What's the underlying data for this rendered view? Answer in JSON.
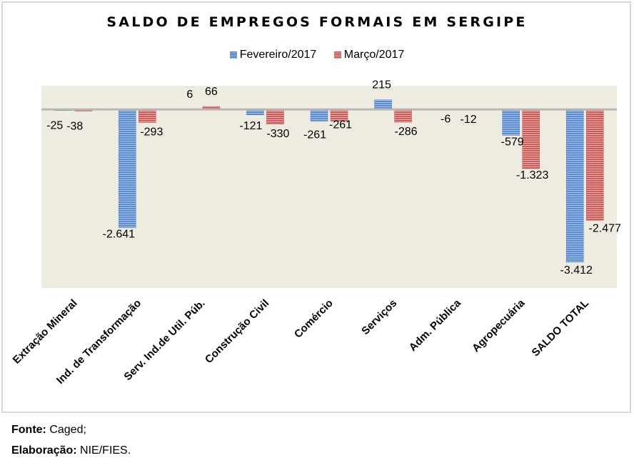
{
  "chart_data": {
    "type": "bar",
    "title": "SALDO DE EMPREGOS FORMAIS EM SERGIPE",
    "xlabel": "",
    "ylabel": "",
    "categories": [
      "Extração Mineral",
      "Ind. de Transformação",
      "Serv. Ind.de Util. Púb.",
      "Construção Civil",
      "Comércio",
      "Serviços",
      "Adm. Pública",
      "Agropecuária",
      "SALDO TOTAL"
    ],
    "series": [
      {
        "name": "Fevereiro/2017",
        "color": "#4f81bd",
        "values": [
          -25,
          -2641,
          6,
          -121,
          -261,
          215,
          -6,
          -579,
          -3412
        ],
        "labels": [
          "-25",
          "-2.641",
          "6",
          "-121",
          "-261",
          "215",
          "-6",
          "-579",
          "-3.412"
        ]
      },
      {
        "name": "Março/2017",
        "color": "#c0504d",
        "values": [
          -38,
          -293,
          66,
          -330,
          -261,
          -286,
          -12,
          -1323,
          -2477
        ],
        "labels": [
          "-38",
          "-293",
          "66",
          "-330",
          "-261",
          "-286",
          "-12",
          "-1.323",
          "-2.477"
        ]
      }
    ],
    "ylim": [
      -3990,
      530
    ],
    "grid": false,
    "legend_position": "top-center",
    "y_axis_visible": false,
    "plot_background": "#eeece1"
  },
  "footer": {
    "source_label": "Fonte:",
    "source_value": "Caged;",
    "credit_label": "Elaboração:",
    "credit_value": "NIE/FIES."
  }
}
